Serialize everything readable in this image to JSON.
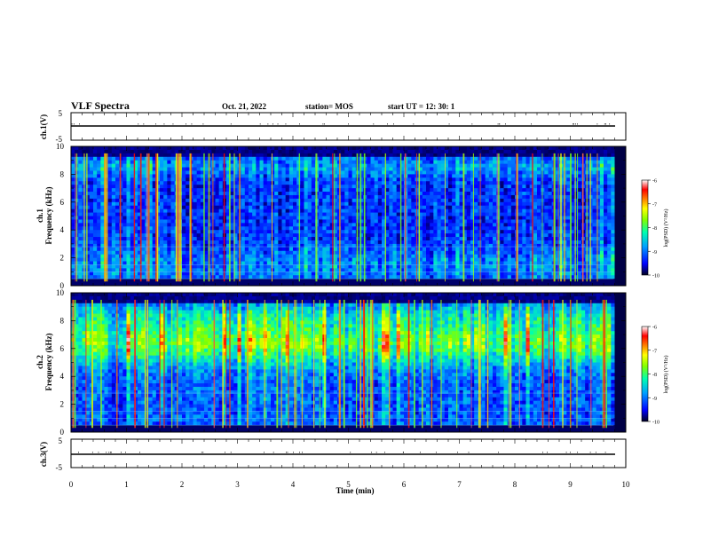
{
  "header": {
    "title": "VLF Spectra",
    "date": "Oct. 21, 2022",
    "station": "station= MOS",
    "start": "start  UT =   12: 30: 1"
  },
  "colors": {
    "spectrogram_scale": [
      "#000020",
      "#0000ff",
      "#00a0ff",
      "#00ffb0",
      "#80ff00",
      "#ffff00",
      "#ff8000",
      "#ff0000",
      "#ffffff"
    ]
  },
  "chart_data": [
    {
      "type": "line",
      "panel": "waveform-ch1",
      "ylabel": "ch.1(V)",
      "yticks": [
        "5",
        "-5"
      ],
      "ylim": [
        -5,
        5
      ],
      "xlim": [
        0,
        10
      ],
      "series": [
        {
          "x": [
            0,
            9.8
          ],
          "values": [
            0,
            0
          ]
        }
      ]
    },
    {
      "type": "heatmap",
      "panel": "spectrogram-ch1",
      "ylabel": "ch.1\nFrequency (kHz)",
      "ylim": [
        0,
        10
      ],
      "xlim": [
        0,
        10
      ],
      "yticks": [
        "0",
        "2",
        "4",
        "6",
        "8",
        "10"
      ],
      "colorbar": {
        "label": "log(PSD) (V²/Hz)",
        "range": [
          -10,
          -6
        ],
        "ticks": [
          "-6",
          "-7",
          "-8",
          "-9",
          "-10"
        ]
      }
    },
    {
      "type": "heatmap",
      "panel": "spectrogram-ch2",
      "ylabel": "ch.2\nFrequency (kHz)",
      "ylim": [
        0,
        10
      ],
      "xlim": [
        0,
        10
      ],
      "yticks": [
        "0",
        "2",
        "4",
        "6",
        "8",
        "10"
      ],
      "colorbar": {
        "label": "log(PSD) (V²/Hz)",
        "range": [
          -10,
          -6
        ],
        "ticks": [
          "-6",
          "-7",
          "-8",
          "-9",
          "-10"
        ]
      }
    },
    {
      "type": "line",
      "panel": "waveform-ch3",
      "ylabel": "ch.3(V)",
      "yticks": [
        "5",
        "-5"
      ],
      "ylim": [
        -5,
        5
      ],
      "xlim": [
        0,
        10
      ],
      "series": [
        {
          "x": [
            0,
            9.8
          ],
          "values": [
            0,
            0
          ]
        }
      ]
    }
  ],
  "xaxis": {
    "label": "Time  (min)",
    "ticks": [
      "0",
      "1",
      "2",
      "3",
      "4",
      "5",
      "6",
      "7",
      "8",
      "9",
      "10"
    ]
  }
}
